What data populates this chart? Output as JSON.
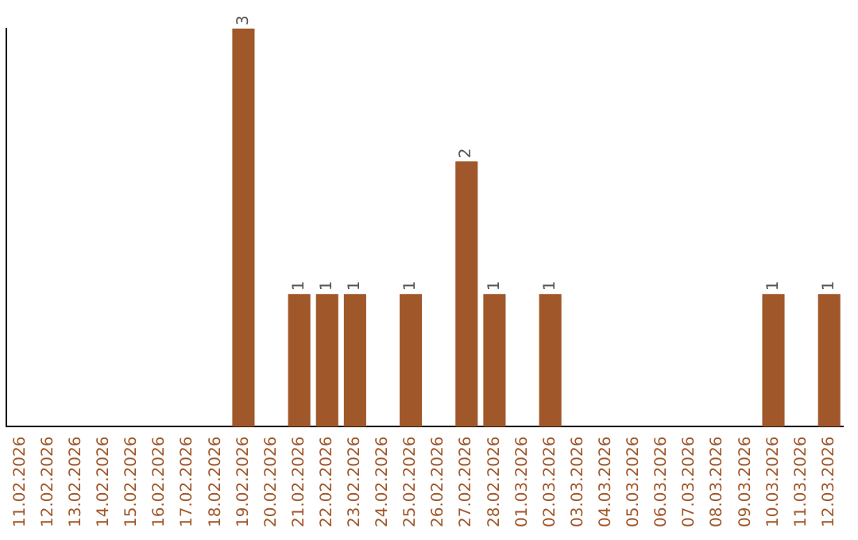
{
  "chart_data": {
    "type": "bar",
    "categories": [
      "11.02.2026",
      "12.02.2026",
      "13.02.2026",
      "14.02.2026",
      "15.02.2026",
      "16.02.2026",
      "17.02.2026",
      "18.02.2026",
      "19.02.2026",
      "20.02.2026",
      "21.02.2026",
      "22.02.2026",
      "23.02.2026",
      "24.02.2026",
      "25.02.2026",
      "26.02.2026",
      "27.02.2026",
      "28.02.2026",
      "01.03.2026",
      "02.03.2026",
      "03.03.2026",
      "04.03.2026",
      "05.03.2026",
      "06.03.2026",
      "07.03.2026",
      "08.03.2026",
      "09.03.2026",
      "10.03.2026",
      "11.03.2026",
      "12.03.2026"
    ],
    "values": [
      0,
      0,
      0,
      0,
      0,
      0,
      0,
      0,
      3,
      0,
      1,
      1,
      1,
      0,
      1,
      0,
      2,
      1,
      0,
      1,
      0,
      0,
      0,
      0,
      0,
      0,
      0,
      1,
      0,
      1
    ],
    "value_labels": [
      null,
      null,
      null,
      null,
      null,
      null,
      null,
      null,
      "3",
      null,
      "1",
      "1",
      "1",
      null,
      "1",
      null,
      "2",
      "1",
      null,
      "1",
      null,
      null,
      null,
      null,
      null,
      null,
      null,
      "1",
      null,
      "1"
    ],
    "color": "#a0572a",
    "tick_labels": "x",
    "grid": false,
    "legend": false
  }
}
